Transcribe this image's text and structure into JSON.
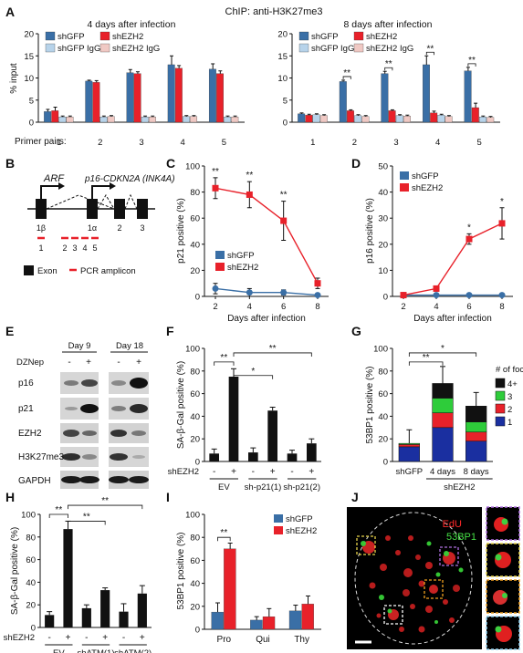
{
  "header": {
    "title": "ChIP: anti-H3K27me3"
  },
  "colors": {
    "gfp": "#3a6fa6",
    "ezh2": "#e8212a",
    "gfpIgG": "#b7d3ea",
    "ezh2IgG": "#f0c9c4",
    "black": "#111111",
    "green": "#2ecc3a",
    "blue": "#1a2fa0"
  },
  "panels": {
    "A": "A",
    "B": "B",
    "C": "C",
    "D": "D",
    "E": "E",
    "F": "F",
    "G": "G",
    "H": "H",
    "I": "I",
    "J": "J"
  },
  "sig": {
    "two": "**",
    "one": "*"
  },
  "chart_data": [
    {
      "id": "A_left",
      "type": "bar",
      "title": "4 days after infection",
      "ylabel": "% input",
      "xlabel": "Primer pairs:",
      "ylim": [
        0,
        20
      ],
      "yticks": [
        0,
        5,
        10,
        15,
        20
      ],
      "categories": [
        "1",
        "2",
        "3",
        "4",
        "5"
      ],
      "series": [
        {
          "name": "shGFP",
          "values": [
            2.4,
            9.3,
            11.2,
            13.0,
            12.0
          ],
          "err": [
            0.5,
            0.2,
            0.7,
            2.0,
            1.2
          ]
        },
        {
          "name": "shEZH2",
          "values": [
            2.6,
            9.0,
            11.0,
            12.2,
            11.0
          ],
          "err": [
            0.8,
            0.4,
            0.4,
            0.6,
            0.6
          ]
        },
        {
          "name": "shGFP IgG",
          "values": [
            1.2,
            1.2,
            1.2,
            1.3,
            1.2
          ],
          "err": [
            0.2,
            0.2,
            0.2,
            0.2,
            0.2
          ]
        },
        {
          "name": "shEZH2 IgG",
          "values": [
            1.2,
            1.3,
            1.2,
            1.3,
            1.2
          ],
          "err": [
            0.2,
            0.2,
            0.2,
            0.2,
            0.2
          ]
        }
      ]
    },
    {
      "id": "A_right",
      "type": "bar",
      "title": "8 days after infection",
      "ylim": [
        0,
        20
      ],
      "yticks": [
        0,
        5,
        10,
        15,
        20
      ],
      "categories": [
        "1",
        "2",
        "3",
        "4",
        "5"
      ],
      "series": [
        {
          "name": "shGFP",
          "values": [
            1.9,
            9.2,
            11.0,
            13.0,
            11.6
          ],
          "err": [
            0.2,
            0.3,
            0.5,
            2.0,
            0.8
          ]
        },
        {
          "name": "shEZH2",
          "values": [
            1.6,
            2.6,
            2.6,
            2.1,
            3.3
          ],
          "err": [
            0.2,
            0.2,
            0.2,
            0.4,
            1.0
          ]
        },
        {
          "name": "shGFP IgG",
          "values": [
            1.7,
            1.5,
            1.5,
            1.6,
            1.2
          ],
          "err": [
            0.2,
            0.2,
            0.2,
            0.2,
            0.2
          ]
        },
        {
          "name": "shEZH2 IgG",
          "values": [
            1.5,
            1.3,
            1.4,
            1.3,
            1.1
          ],
          "err": [
            0.2,
            0.2,
            0.2,
            0.2,
            0.2
          ]
        }
      ],
      "significance": [
        "",
        "**",
        "**",
        "**",
        "**"
      ]
    },
    {
      "id": "C",
      "type": "line",
      "ylabel": "p21 positive (%)",
      "xlabel": "Days after infection",
      "ylim": [
        0,
        100
      ],
      "yticks": [
        0,
        20,
        40,
        60,
        80,
        100
      ],
      "x": [
        2,
        4,
        6,
        8
      ],
      "series": [
        {
          "name": "shGFP",
          "values": [
            6,
            3,
            3,
            1
          ],
          "err": [
            4,
            3,
            2,
            1
          ]
        },
        {
          "name": "shEZH2",
          "values": [
            83,
            78,
            58,
            10
          ],
          "err": [
            8,
            10,
            15,
            4
          ]
        }
      ],
      "significance": [
        "**",
        "**",
        "**",
        ""
      ]
    },
    {
      "id": "D",
      "type": "line",
      "ylabel": "p16 positive (%)",
      "xlabel": "Days after infection",
      "ylim": [
        0,
        50
      ],
      "yticks": [
        0,
        10,
        20,
        30,
        40,
        50
      ],
      "x": [
        2,
        4,
        6,
        8
      ],
      "series": [
        {
          "name": "shGFP",
          "values": [
            0.5,
            0.5,
            0.5,
            0.5
          ],
          "err": [
            0,
            0,
            0,
            0
          ]
        },
        {
          "name": "shEZH2",
          "values": [
            0.5,
            3,
            22,
            28
          ],
          "err": [
            0,
            1,
            2,
            6
          ]
        }
      ],
      "significance": [
        "",
        "",
        "*",
        "*"
      ]
    },
    {
      "id": "F",
      "type": "bar",
      "ylabel": "SA-β-Gal positive (%)",
      "ylim": [
        0,
        100
      ],
      "yticks": [
        0,
        20,
        40,
        60,
        80,
        100
      ],
      "row_label": "shEZH2",
      "signs": [
        "-",
        "+",
        "-",
        "+",
        "-",
        "+"
      ],
      "groups": [
        "EV",
        "sh-p21(1)",
        "sh-p21(2)"
      ],
      "values": [
        7,
        75,
        8,
        45,
        7,
        16
      ],
      "err": [
        4,
        7,
        4,
        3,
        3,
        4
      ]
    },
    {
      "id": "G",
      "type": "bar",
      "ylabel": "53BP1 positive (%)",
      "ylim": [
        0,
        100
      ],
      "yticks": [
        0,
        20,
        40,
        60,
        80,
        100
      ],
      "categories": [
        "shGFP",
        "4 days",
        "8 days"
      ],
      "group_label": "shEZH2",
      "legend_title": "# of foci",
      "series": [
        {
          "name": "1",
          "values": [
            13,
            30,
            18
          ]
        },
        {
          "name": "2",
          "values": [
            2,
            13,
            8
          ]
        },
        {
          "name": "3",
          "values": [
            1,
            13,
            9
          ]
        },
        {
          "name": "4+",
          "values": [
            0,
            13,
            14
          ]
        }
      ],
      "err": [
        12,
        15,
        12
      ]
    },
    {
      "id": "H",
      "type": "bar",
      "ylabel": "SA-β-Gal positive (%)",
      "ylim": [
        0,
        100
      ],
      "yticks": [
        0,
        20,
        40,
        60,
        80,
        100
      ],
      "row_label": "shEZH2",
      "signs": [
        "-",
        "+",
        "-",
        "+",
        "-",
        "+"
      ],
      "groups": [
        "EV",
        "shATM(1)",
        "shATM(2)"
      ],
      "values": [
        11,
        87,
        17,
        33,
        14,
        30
      ],
      "err": [
        3,
        7,
        3,
        2,
        7,
        7
      ]
    },
    {
      "id": "I",
      "type": "bar",
      "ylabel": "53BP1 positive (%)",
      "ylim": [
        0,
        100
      ],
      "yticks": [
        0,
        20,
        40,
        60,
        80,
        100
      ],
      "categories": [
        "Pro",
        "Qui",
        "Thy"
      ],
      "series": [
        {
          "name": "shGFP",
          "values": [
            15,
            8,
            16
          ],
          "err": [
            8,
            3,
            5
          ]
        },
        {
          "name": "shEZH2",
          "values": [
            70,
            11,
            22
          ],
          "err": [
            5,
            7,
            7
          ]
        }
      ]
    }
  ],
  "B": {
    "arf": "ARF",
    "ink": "p16-CDKN2A (INK4A)",
    "ex1b": "1β",
    "ex1a": "1α",
    "ex2": "2",
    "ex3": "3",
    "amplicons": [
      "1",
      "2",
      "3",
      "4",
      "5"
    ],
    "legend_exon": "Exon",
    "legend_pcr": "PCR amplicon"
  },
  "E": {
    "day9": "Day 9",
    "day18": "Day 18",
    "dzn": "DZNep",
    "signs": [
      "-",
      "+",
      "-",
      "+"
    ],
    "rows": [
      "p16",
      "p21",
      "EZH2",
      "H3K27me3",
      "GAPDH"
    ]
  },
  "J": {
    "edu": "EdU",
    "bp1": "53BP1"
  }
}
